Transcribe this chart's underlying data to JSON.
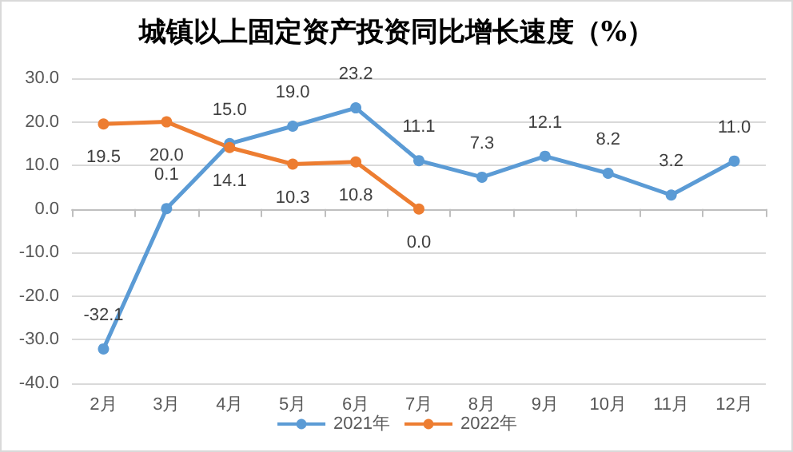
{
  "chart_data": {
    "type": "line",
    "title": "城镇以上固定资产投资同比增长速度（%）",
    "categories": [
      "2月",
      "3月",
      "4月",
      "5月",
      "6月",
      "7月",
      "8月",
      "9月",
      "10月",
      "11月",
      "12月"
    ],
    "series": [
      {
        "name": "2021年",
        "color": "#5b9bd5",
        "values": [
          -32.1,
          0.1,
          15.0,
          19.0,
          23.2,
          11.1,
          7.3,
          12.1,
          8.2,
          3.2,
          11.0
        ],
        "value_labels": [
          "-32.1",
          "0.1",
          "15.0",
          "19.0",
          "23.2",
          "11.1",
          "7.3",
          "12.1",
          "8.2",
          "3.2",
          "11.0"
        ]
      },
      {
        "name": "2022年",
        "color": "#ed7d31",
        "values": [
          19.5,
          20.0,
          14.1,
          10.3,
          10.8,
          0.0,
          null,
          null,
          null,
          null,
          null
        ],
        "value_labels": [
          "19.5",
          "20.0",
          "14.1",
          "10.3",
          "10.8",
          "0.0",
          null,
          null,
          null,
          null,
          null
        ]
      }
    ],
    "ylim": [
      -40,
      30
    ],
    "yticks": [
      {
        "value": -40,
        "label": "-40.0"
      },
      {
        "value": -30,
        "label": "-30.0"
      },
      {
        "value": -20,
        "label": "-20.0"
      },
      {
        "value": -10,
        "label": "-10.0"
      },
      {
        "value": 0,
        "label": "0.0"
      },
      {
        "value": 10,
        "label": "10.0"
      },
      {
        "value": 20,
        "label": "20.0"
      },
      {
        "value": 30,
        "label": "30.0"
      }
    ],
    "grid": "y",
    "legend": "bottom",
    "marker": "circle",
    "line_style": "solid"
  }
}
